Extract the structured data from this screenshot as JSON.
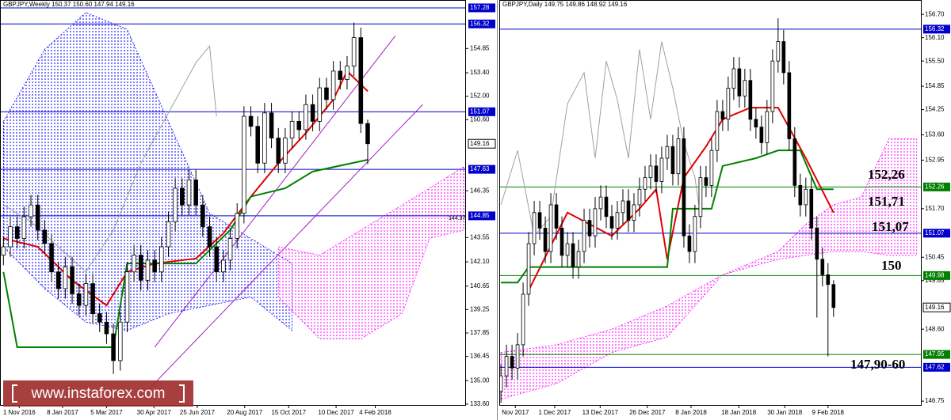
{
  "chart_data": [
    {
      "type": "candlestick",
      "title": "GBPJPY,Weekly 150.37 150.60 147.94 149.16",
      "xlim": [
        -0.5,
        67.3
      ],
      "ylim": [
        133.5,
        157.75
      ],
      "xticks": [
        {
          "value": 2.3,
          "label": "1 Nov 2016"
        },
        {
          "value": 8.6,
          "label": "8 Jan 2017"
        },
        {
          "value": 15,
          "label": "5 Mar 2017"
        },
        {
          "value": 21.9,
          "label": "30 Apr 2017"
        },
        {
          "value": 28.2,
          "label": "25 Jun 2017"
        },
        {
          "value": 35.1,
          "label": "20 Aug 2017"
        },
        {
          "value": 41.5,
          "label": "15 Oct 2017"
        },
        {
          "value": 48.4,
          "label": "10 Dec 2017"
        },
        {
          "value": 54.1,
          "label": "4 Feb 2018"
        }
      ],
      "yticks": [
        154.85,
        {
          "value": 153.4,
          "label": "153.40"
        },
        {
          "value": 152,
          "label": "152.00"
        },
        {
          "value": 150.6,
          "label": "150.60"
        },
        146.35,
        143.55,
        {
          "value": 142.1,
          "label": "142.10"
        },
        140.65,
        139.25,
        137.85,
        136.45,
        {
          "value": 135,
          "label": "135.00"
        },
        {
          "value": 133.6,
          "label": "133.60"
        }
      ],
      "candle_colors": {
        "up": "#ffffff",
        "down": "#000000",
        "outline": "#000000"
      },
      "open": [
        142.5,
        143.0,
        144.2,
        143.5,
        144.8,
        145.5,
        144.0,
        143.2,
        141.5,
        140.5,
        141.8,
        140.2,
        139.5,
        140.8,
        139.0,
        138.5,
        137.8,
        136.2,
        138.5,
        141.5,
        142.5,
        141.0,
        142.2,
        141.5,
        143.0,
        144.5,
        146.5,
        145.5,
        147.0,
        145.5,
        144.2,
        143.0,
        141.5,
        142.2,
        143.5,
        145.0,
        150.8,
        150.2,
        148.0,
        151.0,
        149.5,
        148.0,
        149.5,
        150.5,
        150.0,
        151.5,
        150.5,
        152.5,
        151.8,
        153.5,
        153.0,
        153.8,
        155.5,
        150.37
      ],
      "high": [
        143.6,
        144.8,
        144.8,
        145.4,
        146.1,
        146.1,
        144.6,
        143.8,
        142.1,
        142.4,
        142.4,
        140.8,
        141.4,
        141.4,
        139.6,
        139.1,
        138.4,
        139.1,
        142.1,
        143.1,
        143.1,
        142.8,
        142.8,
        143.6,
        145.1,
        147.1,
        147.1,
        147.6,
        147.6,
        146.1,
        144.8,
        143.6,
        142.8,
        144.1,
        145.6,
        151.4,
        151.4,
        150.8,
        151.6,
        151.6,
        150.1,
        150.1,
        151.1,
        151.1,
        152.1,
        152.1,
        153.1,
        153.1,
        154.1,
        154.1,
        154.4,
        156.4,
        156.1,
        150.6
      ],
      "low": [
        141.9,
        142.4,
        142.9,
        142.9,
        144.2,
        143.4,
        142.6,
        140.9,
        139.9,
        139.9,
        139.6,
        138.9,
        138.9,
        138.4,
        137.9,
        137.2,
        135.4,
        135.6,
        137.9,
        140.9,
        140.4,
        140.4,
        140.9,
        140.9,
        142.4,
        143.9,
        144.9,
        144.9,
        144.9,
        143.6,
        142.4,
        140.9,
        140.9,
        141.6,
        142.9,
        144.4,
        149.6,
        147.4,
        147.4,
        148.9,
        147.4,
        147.4,
        148.9,
        149.4,
        149.4,
        149.9,
        149.9,
        151.2,
        151.2,
        152.4,
        152.4,
        153.2,
        149.8,
        147.94
      ],
      "close": [
        143.0,
        144.2,
        143.5,
        144.8,
        145.5,
        144.0,
        143.2,
        141.5,
        140.5,
        141.8,
        140.2,
        139.5,
        140.8,
        139.0,
        138.5,
        137.8,
        136.2,
        138.5,
        141.5,
        142.5,
        141.0,
        142.2,
        141.5,
        143.0,
        144.5,
        146.5,
        145.5,
        147.0,
        145.5,
        144.2,
        143.0,
        141.5,
        142.2,
        143.5,
        145.0,
        150.8,
        150.2,
        148.0,
        151.0,
        149.5,
        148.0,
        149.5,
        150.5,
        150.0,
        151.5,
        150.5,
        152.5,
        151.8,
        153.5,
        153.0,
        153.8,
        155.5,
        150.37,
        149.16
      ],
      "clouds": [
        {
          "color": "#0000ff",
          "x": [
            0,
            6,
            12,
            18,
            24,
            30,
            36,
            42
          ],
          "span_a": [
            150.5,
            154.8,
            157.0,
            156.0,
            150.5,
            145.0,
            143.5,
            142.0
          ],
          "span_b": [
            143.0,
            140.5,
            138.5,
            138.0,
            139.0,
            139.5,
            140.0,
            138.0
          ]
        },
        {
          "color": "#ff00ff",
          "x": [
            40,
            46,
            52,
            58,
            62,
            67
          ],
          "span_a": [
            143.0,
            142.5,
            144.0,
            145.5,
            146.5,
            147.8
          ],
          "span_b": [
            140.0,
            137.5,
            137.5,
            139.0,
            143.5,
            144.0
          ]
        }
      ],
      "lines": [
        {
          "color": "#a0a0a0",
          "width": 1,
          "x": [
            0,
            4,
            8,
            12,
            16,
            20,
            24,
            26,
            28,
            30,
            31
          ],
          "values": [
            145.5,
            144.5,
            143.0,
            141.5,
            144.0,
            148.0,
            151.0,
            152.5,
            154.0,
            155.0,
            150.8
          ]
        },
        {
          "color": "#e00000",
          "width": 2,
          "x": [
            0,
            5,
            10,
            15,
            18,
            22,
            28,
            32,
            36,
            40,
            44,
            48,
            50,
            53
          ],
          "values": [
            143.5,
            143.0,
            141.0,
            139.5,
            141.5,
            142.0,
            142.3,
            143.8,
            146.0,
            148.0,
            149.8,
            151.8,
            153.5,
            152.3
          ]
        },
        {
          "color": "#008000",
          "width": 2,
          "x": [
            0,
            2,
            16,
            18,
            28,
            33,
            36,
            41,
            45,
            53
          ],
          "values": [
            141.5,
            137.0,
            137.0,
            142.0,
            142.0,
            144.0,
            146.0,
            146.5,
            147.5,
            148.2
          ]
        }
      ],
      "trendlines": [
        {
          "color": "#a020c0",
          "x": [
            22,
            57
          ],
          "values": [
            137.0,
            155.6
          ]
        },
        {
          "color": "#a020c0",
          "x": [
            20,
            61
          ],
          "values": [
            134.0,
            151.5
          ]
        }
      ],
      "levels": [
        {
          "value": 157.28,
          "color": "#0000cc"
        },
        {
          "value": 156.32,
          "color": "#0000cc"
        },
        {
          "value": 151.07,
          "color": "#0000cc"
        },
        {
          "value": 147.63,
          "color": "#0000cc"
        },
        {
          "value": 144.85,
          "color": "#0000cc"
        }
      ],
      "current": 149.16,
      "extra_label": "144.37"
    },
    {
      "type": "candlestick",
      "title": "GBPJPY,Daily 149.75 149.86 148.92 149.16",
      "xlim": [
        -0.3,
        75.9
      ],
      "ylim": [
        146.63,
        157.07
      ],
      "xticks": [
        {
          "value": 2.6,
          "label": "Nov 2017"
        },
        {
          "value": 9.7,
          "label": "1 Dec 2017"
        },
        {
          "value": 17.9,
          "label": "13 Dec 2017"
        },
        {
          "value": 26.4,
          "label": "26 Dec 2017"
        },
        {
          "value": 34.3,
          "label": "8 Jan 2018"
        },
        {
          "value": 42.9,
          "label": "18 Jan 2018"
        },
        {
          "value": 51.2,
          "label": "30 Jan 2018"
        },
        {
          "value": 59,
          "label": "9 Feb 2018"
        }
      ],
      "yticks": [
        {
          "value": 156.7,
          "label": "156.70"
        },
        {
          "value": 156.1,
          "label": "156.10"
        },
        {
          "value": 155.5,
          "label": "155.50"
        },
        154.85,
        154.25,
        {
          "value": 153.6,
          "label": "153.60"
        },
        152.95,
        {
          "value": 151.7,
          "label": "151.70"
        },
        150.45,
        149.85,
        {
          "value": 148.6,
          "label": "148.60"
        },
        146.75
      ],
      "candle_colors": {
        "up": "#ffffff",
        "down": "#000000",
        "outline": "#000000"
      },
      "open": [
        147.0,
        147.4,
        147.9,
        147.6,
        148.2,
        149.5,
        150.8,
        151.6,
        151.2,
        150.6,
        151.8,
        151.2,
        150.5,
        150.8,
        150.2,
        150.6,
        151.4,
        151.0,
        151.7,
        152.0,
        151.5,
        151.2,
        151.6,
        151.9,
        151.4,
        151.8,
        152.2,
        152.5,
        152.8,
        152.4,
        153.0,
        153.3,
        152.6,
        153.5,
        151.0,
        150.6,
        151.5,
        152.5,
        152.3,
        153.2,
        154.2,
        154.0,
        154.8,
        155.3,
        154.6,
        155.0,
        154.0,
        153.8,
        153.4,
        154.2,
        155.5,
        156.0,
        155.2,
        153.5,
        152.3,
        151.8,
        152.2,
        151.2,
        150.4,
        150.0,
        149.75
      ],
      "high": [
        147.7,
        148.2,
        148.2,
        148.5,
        149.8,
        151.1,
        151.9,
        151.9,
        151.5,
        152.1,
        152.1,
        151.5,
        151.1,
        151.1,
        150.9,
        151.7,
        151.7,
        152.0,
        152.3,
        152.3,
        151.8,
        151.9,
        152.2,
        152.2,
        152.1,
        152.5,
        152.8,
        153.1,
        153.1,
        153.3,
        153.6,
        153.6,
        153.8,
        153.8,
        151.3,
        151.8,
        152.8,
        152.8,
        153.5,
        154.5,
        154.5,
        155.1,
        155.6,
        155.6,
        155.3,
        155.3,
        154.3,
        154.1,
        154.5,
        155.8,
        156.6,
        156.3,
        155.5,
        153.8,
        152.6,
        152.5,
        152.5,
        151.5,
        150.7,
        150.3,
        149.86
      ],
      "low": [
        146.7,
        147.1,
        147.3,
        147.3,
        147.9,
        149.2,
        150.5,
        150.9,
        150.3,
        150.3,
        150.9,
        150.2,
        150.2,
        149.9,
        149.9,
        150.3,
        150.7,
        150.7,
        151.4,
        151.2,
        150.9,
        150.9,
        151.3,
        151.1,
        151.1,
        151.5,
        151.9,
        152.2,
        152.1,
        152.1,
        152.7,
        152.3,
        152.3,
        150.7,
        150.3,
        150.3,
        151.2,
        152.0,
        152.0,
        152.9,
        153.7,
        153.7,
        154.5,
        154.3,
        154.3,
        153.7,
        153.5,
        153.1,
        153.1,
        153.9,
        155.2,
        154.9,
        153.2,
        152.0,
        151.5,
        151.5,
        150.9,
        148.9,
        149.7,
        147.9,
        148.92
      ],
      "close": [
        147.4,
        147.9,
        147.6,
        148.2,
        149.5,
        150.8,
        151.6,
        151.2,
        150.6,
        151.8,
        151.2,
        150.5,
        150.8,
        150.2,
        150.6,
        151.4,
        151.0,
        151.7,
        152.0,
        151.5,
        151.2,
        151.6,
        151.9,
        151.4,
        151.8,
        152.2,
        152.5,
        152.8,
        152.4,
        153.0,
        153.3,
        152.6,
        153.5,
        151.0,
        150.6,
        151.5,
        152.5,
        152.3,
        153.2,
        154.2,
        154.0,
        154.8,
        155.3,
        154.6,
        155.0,
        154.0,
        153.8,
        153.4,
        154.2,
        155.5,
        156.0,
        155.2,
        153.5,
        152.3,
        151.8,
        152.2,
        151.2,
        150.4,
        150.0,
        149.75,
        149.16
      ],
      "clouds": [
        {
          "color": "#ff00ff",
          "x": [
            0,
            10,
            20,
            30,
            40,
            50,
            55,
            60,
            65,
            70,
            75
          ],
          "span_a": [
            148.0,
            148.2,
            148.6,
            149.2,
            150.0,
            150.6,
            151.3,
            151.8,
            152.0,
            153.5,
            153.5
          ],
          "span_b": [
            146.8,
            147.2,
            148.0,
            148.4,
            150.0,
            150.4,
            150.5,
            150.6,
            150.6,
            150.5,
            150.5
          ]
        }
      ],
      "lines": [
        {
          "color": "#a0a0a0",
          "width": 1,
          "x": [
            0,
            3,
            6,
            9,
            12,
            15,
            17,
            19,
            21,
            23,
            25,
            27,
            29,
            31,
            33,
            35,
            36
          ],
          "values": [
            151.8,
            153.2,
            151.0,
            151.5,
            154.4,
            155.2,
            153.0,
            155.5,
            154.5,
            153.0,
            155.8,
            154.0,
            156.0,
            154.8,
            153.4,
            152.5,
            151.5
          ]
        },
        {
          "color": "#e00000",
          "width": 2,
          "x": [
            5,
            12,
            20,
            25,
            28,
            30,
            33,
            37,
            40,
            45,
            50,
            55,
            60
          ],
          "values": [
            149.6,
            151.6,
            151.0,
            151.7,
            152.2,
            150.4,
            152.5,
            153.3,
            154.0,
            154.3,
            154.3,
            153.0,
            151.6
          ]
        },
        {
          "color": "#008000",
          "width": 2,
          "x": [
            0,
            3,
            5,
            12,
            30,
            31,
            38,
            40,
            46,
            50,
            54,
            57,
            60
          ],
          "values": [
            149.8,
            149.8,
            150.2,
            150.2,
            150.2,
            151.7,
            151.7,
            152.8,
            153.0,
            153.2,
            153.2,
            152.2,
            152.2
          ]
        }
      ],
      "levels": [
        {
          "value": 156.32,
          "color": "#0000cc"
        },
        {
          "value": 152.26,
          "color": "#008000"
        },
        {
          "value": 151.07,
          "color": "#0000cc"
        },
        {
          "value": 149.98,
          "color": "#008000"
        },
        {
          "value": 147.95,
          "color": "#008000"
        },
        {
          "value": 147.62,
          "color": "#0000cc"
        }
      ],
      "current": 149.16,
      "annotations": [
        "152,26",
        "151,71",
        "151,07",
        "150",
        "147,90-60"
      ]
    }
  ],
  "watermark": "www.instaforex.com"
}
